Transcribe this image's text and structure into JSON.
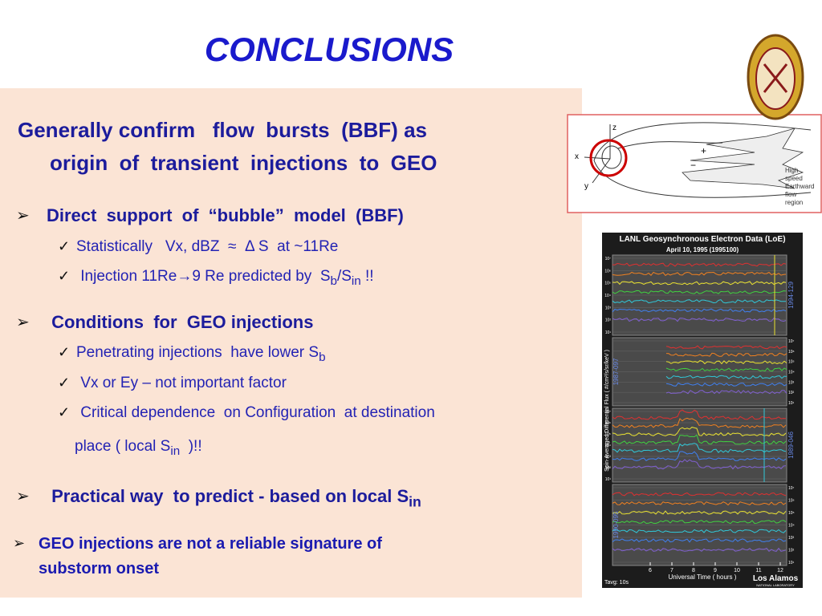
{
  "header": {
    "title": "CONCLUSIONS"
  },
  "heading": [
    "Generally confirm   flow  bursts  (BBF) as",
    "origin  of  transient  injections  to  GEO"
  ],
  "bullets": [
    {
      "lines": [
        [
          "Direct  support  of  “bubble”  model  (BBF)"
        ]
      ],
      "items": [
        {
          "lines": [
            [
              "Statistically   Vx, dBZ  ≈  Δ S  at ~11Re"
            ]
          ]
        },
        {
          "lines": [
            [
              " Injection 11Re→9 Re predicted by  S",
              {
                "sub": "b"
              },
              "/S",
              {
                "sub": "in"
              },
              " !!"
            ]
          ]
        }
      ]
    },
    {
      "lines": [
        [
          " Conditions  for  GEO injections"
        ]
      ],
      "items": [
        {
          "lines": [
            [
              "Penetrating injections  have lower S",
              {
                "sub": "b"
              }
            ]
          ]
        },
        {
          "lines": [
            [
              " Vx or Ey – not important factor"
            ]
          ]
        },
        {
          "lines": [
            [
              " Critical dependence  on Configuration  at destination"
            ],
            [
              "place ( local S",
              {
                "sub": "in"
              },
              "  )!!"
            ]
          ]
        }
      ]
    },
    {
      "lines": [
        [
          " Practical way  to predict - based on local S",
          {
            "sub": "in"
          }
        ]
      ],
      "items": []
    },
    {
      "lines": [
        [
          "GEO injections are not a reliable signature of"
        ],
        [
          "substorm onset"
        ]
      ],
      "items": []
    }
  ],
  "diagram": {
    "axes": [
      "z",
      "x",
      "y"
    ],
    "signs": [
      "+",
      "−"
    ],
    "caption": [
      "High",
      "speed",
      "Earthward",
      "flow",
      "region"
    ]
  },
  "plot": {
    "title": "LANL Geosynchronous Electron Data (LoE)",
    "subtitle": "April 10, 1995 (1995100)",
    "ylabel": "Spin-Averaged Differential Flux    ( #/cm²/s/sr/keV )",
    "satellites": [
      "1994-129",
      "1987-097",
      "1989-046",
      "1990-095"
    ],
    "ytick_labels": [
      "10⁷",
      "10⁶",
      "10⁵",
      "10⁴",
      "10³",
      "10²",
      "10¹"
    ],
    "xticks": [
      6,
      7,
      8,
      9,
      10,
      11,
      12
    ],
    "xlabel": "Universal Time ( hours )",
    "averaging": "Tavg: 10s",
    "lab": [
      "Los Alamos",
      "NATIONAL LABORATORY"
    ]
  }
}
